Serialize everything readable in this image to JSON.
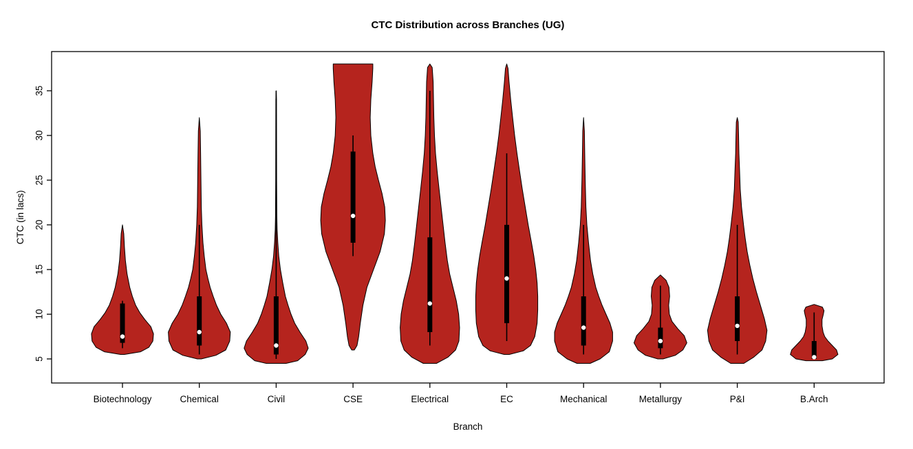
{
  "chart_data": {
    "type": "violin",
    "title": "CTC Distribution across Branches (UG)",
    "xlabel": "Branch",
    "ylabel": "CTC (in lacs)",
    "categories": [
      "Biotechnology",
      "Chemical",
      "Civil",
      "CSE",
      "Electrical",
      "EC",
      "Mechanical",
      "Metallurgy",
      "P&I",
      "B.Arch"
    ],
    "y_ticks": [
      5,
      10,
      15,
      20,
      25,
      30,
      35
    ],
    "ylim": [
      2.5,
      39.5
    ],
    "grid": false,
    "legend": "none",
    "styles": {
      "violin_fill": "#B5241E",
      "violin_stroke": "#000000",
      "box_color": "#000000",
      "median_dot": "#FFFFFF",
      "axis_color": "#000000",
      "background": "#FFFFFF"
    },
    "series": [
      {
        "name": "Biotechnology",
        "range": [
          5.5,
          20
        ],
        "q1": 6.8,
        "q3": 11.2,
        "median": 7.5,
        "whiskers": [
          6.2,
          11.5
        ],
        "density": [
          [
            5.5,
            0.06
          ],
          [
            5.8,
            0.55
          ],
          [
            6.3,
            0.8
          ],
          [
            7.0,
            0.92
          ],
          [
            7.8,
            0.94
          ],
          [
            8.6,
            0.86
          ],
          [
            9.4,
            0.68
          ],
          [
            10.2,
            0.52
          ],
          [
            11.0,
            0.4
          ],
          [
            12.0,
            0.3
          ],
          [
            13.0,
            0.22
          ],
          [
            14.5,
            0.14
          ],
          [
            16.0,
            0.09
          ],
          [
            17.5,
            0.06
          ],
          [
            19.0,
            0.04
          ],
          [
            20.0,
            0.0
          ]
        ]
      },
      {
        "name": "Chemical",
        "range": [
          5,
          32
        ],
        "q1": 6.5,
        "q3": 12.0,
        "median": 8.0,
        "whiskers": [
          5.5,
          20
        ],
        "density": [
          [
            5.0,
            0.06
          ],
          [
            5.4,
            0.5
          ],
          [
            6.0,
            0.8
          ],
          [
            7.0,
            0.92
          ],
          [
            8.0,
            0.94
          ],
          [
            9.0,
            0.82
          ],
          [
            10.0,
            0.65
          ],
          [
            11.0,
            0.52
          ],
          [
            12.0,
            0.42
          ],
          [
            13.0,
            0.33
          ],
          [
            14.0,
            0.26
          ],
          [
            15.0,
            0.2
          ],
          [
            16.5,
            0.15
          ],
          [
            18.0,
            0.11
          ],
          [
            20.0,
            0.08
          ],
          [
            22.0,
            0.06
          ],
          [
            25.0,
            0.05
          ],
          [
            28.0,
            0.04
          ],
          [
            30.5,
            0.03
          ],
          [
            32.0,
            0.0
          ]
        ]
      },
      {
        "name": "Civil",
        "range": [
          4.5,
          35
        ],
        "q1": 5.5,
        "q3": 12.0,
        "median": 6.5,
        "whiskers": [
          5.0,
          35.0
        ],
        "density": [
          [
            4.5,
            0.3
          ],
          [
            4.8,
            0.65
          ],
          [
            5.5,
            0.88
          ],
          [
            6.2,
            0.97
          ],
          [
            7.0,
            0.9
          ],
          [
            8.0,
            0.72
          ],
          [
            9.0,
            0.56
          ],
          [
            10.0,
            0.45
          ],
          [
            11.0,
            0.36
          ],
          [
            12.0,
            0.28
          ],
          [
            13.5,
            0.2
          ],
          [
            15.0,
            0.13
          ],
          [
            16.5,
            0.08
          ],
          [
            18.0,
            0.05
          ],
          [
            19.5,
            0.03
          ],
          [
            21.0,
            0.02
          ],
          [
            25.0,
            0.015
          ],
          [
            30.0,
            0.012
          ],
          [
            34.0,
            0.01
          ],
          [
            35.0,
            0.0
          ]
        ]
      },
      {
        "name": "CSE",
        "range": [
          6,
          38
        ],
        "q1": 18.0,
        "q3": 28.2,
        "median": 21.0,
        "whiskers": [
          16.5,
          30.0
        ],
        "density": [
          [
            6.0,
            0.04
          ],
          [
            6.5,
            0.12
          ],
          [
            7.5,
            0.17
          ],
          [
            9.0,
            0.22
          ],
          [
            11.0,
            0.3
          ],
          [
            13.0,
            0.42
          ],
          [
            15.0,
            0.62
          ],
          [
            17.0,
            0.82
          ],
          [
            19.0,
            0.95
          ],
          [
            20.5,
            0.98
          ],
          [
            22.0,
            0.96
          ],
          [
            23.5,
            0.88
          ],
          [
            25.0,
            0.77
          ],
          [
            26.5,
            0.67
          ],
          [
            28.0,
            0.6
          ],
          [
            30.0,
            0.54
          ],
          [
            32.0,
            0.52
          ],
          [
            34.0,
            0.54
          ],
          [
            36.0,
            0.58
          ],
          [
            37.5,
            0.6
          ],
          [
            38.0,
            0.6
          ]
        ]
      },
      {
        "name": "Electrical",
        "range": [
          4.5,
          38
        ],
        "q1": 8.0,
        "q3": 18.6,
        "median": 11.2,
        "whiskers": [
          6.5,
          35.0
        ],
        "density": [
          [
            4.5,
            0.2
          ],
          [
            5.2,
            0.55
          ],
          [
            6.0,
            0.78
          ],
          [
            7.0,
            0.88
          ],
          [
            8.5,
            0.9
          ],
          [
            10.0,
            0.87
          ],
          [
            11.5,
            0.8
          ],
          [
            13.0,
            0.7
          ],
          [
            14.5,
            0.6
          ],
          [
            16.0,
            0.53
          ],
          [
            18.0,
            0.46
          ],
          [
            20.0,
            0.4
          ],
          [
            22.0,
            0.34
          ],
          [
            24.0,
            0.28
          ],
          [
            26.0,
            0.22
          ],
          [
            28.0,
            0.17
          ],
          [
            30.0,
            0.14
          ],
          [
            32.0,
            0.12
          ],
          [
            34.0,
            0.11
          ],
          [
            36.0,
            0.1
          ],
          [
            37.6,
            0.07
          ],
          [
            38.0,
            0.0
          ]
        ]
      },
      {
        "name": "EC",
        "range": [
          5.5,
          38
        ],
        "q1": 9.0,
        "q3": 20.0,
        "median": 14.0,
        "whiskers": [
          7.0,
          28.0
        ],
        "density": [
          [
            5.5,
            0.08
          ],
          [
            5.9,
            0.5
          ],
          [
            6.5,
            0.72
          ],
          [
            7.5,
            0.85
          ],
          [
            9.0,
            0.92
          ],
          [
            10.5,
            0.94
          ],
          [
            12.0,
            0.94
          ],
          [
            13.5,
            0.92
          ],
          [
            15.0,
            0.88
          ],
          [
            16.5,
            0.82
          ],
          [
            18.0,
            0.75
          ],
          [
            20.0,
            0.65
          ],
          [
            22.0,
            0.56
          ],
          [
            24.0,
            0.47
          ],
          [
            26.0,
            0.39
          ],
          [
            28.0,
            0.31
          ],
          [
            30.0,
            0.24
          ],
          [
            32.0,
            0.18
          ],
          [
            34.0,
            0.12
          ],
          [
            36.0,
            0.07
          ],
          [
            37.5,
            0.04
          ],
          [
            38.0,
            0.0
          ]
        ]
      },
      {
        "name": "Mechanical",
        "range": [
          4.5,
          32
        ],
        "q1": 6.5,
        "q3": 12.0,
        "median": 8.5,
        "whiskers": [
          5.5,
          20.0
        ],
        "density": [
          [
            4.5,
            0.2
          ],
          [
            5.0,
            0.5
          ],
          [
            5.8,
            0.78
          ],
          [
            7.0,
            0.88
          ],
          [
            8.0,
            0.88
          ],
          [
            9.0,
            0.8
          ],
          [
            10.0,
            0.68
          ],
          [
            11.0,
            0.56
          ],
          [
            12.0,
            0.46
          ],
          [
            13.0,
            0.37
          ],
          [
            14.5,
            0.28
          ],
          [
            16.0,
            0.21
          ],
          [
            18.0,
            0.15
          ],
          [
            20.0,
            0.1
          ],
          [
            22.0,
            0.07
          ],
          [
            25.0,
            0.05
          ],
          [
            28.0,
            0.035
          ],
          [
            30.5,
            0.025
          ],
          [
            32.0,
            0.0
          ]
        ]
      },
      {
        "name": "Metallurgy",
        "range": [
          5,
          14.4
        ],
        "q1": 6.2,
        "q3": 8.5,
        "median": 7.0,
        "whiskers": [
          5.5,
          13.2
        ],
        "density": [
          [
            5.0,
            0.08
          ],
          [
            5.4,
            0.45
          ],
          [
            6.0,
            0.68
          ],
          [
            6.8,
            0.8
          ],
          [
            7.6,
            0.72
          ],
          [
            8.4,
            0.52
          ],
          [
            9.2,
            0.35
          ],
          [
            10.0,
            0.27
          ],
          [
            11.0,
            0.25
          ],
          [
            12.0,
            0.28
          ],
          [
            13.0,
            0.26
          ],
          [
            13.8,
            0.17
          ],
          [
            14.4,
            0.0
          ]
        ]
      },
      {
        "name": "P&I",
        "range": [
          4.5,
          32
        ],
        "q1": 7.0,
        "q3": 12.0,
        "median": 8.7,
        "whiskers": [
          5.5,
          20.0
        ],
        "density": [
          [
            4.5,
            0.2
          ],
          [
            5.2,
            0.5
          ],
          [
            6.0,
            0.75
          ],
          [
            7.0,
            0.86
          ],
          [
            8.2,
            0.9
          ],
          [
            9.5,
            0.82
          ],
          [
            11.0,
            0.7
          ],
          [
            12.5,
            0.58
          ],
          [
            14.0,
            0.47
          ],
          [
            15.5,
            0.38
          ],
          [
            17.0,
            0.3
          ],
          [
            18.5,
            0.24
          ],
          [
            20.0,
            0.19
          ],
          [
            22.0,
            0.13
          ],
          [
            24.0,
            0.09
          ],
          [
            26.0,
            0.07
          ],
          [
            28.0,
            0.05
          ],
          [
            30.0,
            0.04
          ],
          [
            31.5,
            0.03
          ],
          [
            32.0,
            0.0
          ]
        ]
      },
      {
        "name": "B.Arch",
        "range": [
          4.8,
          11.1
        ],
        "q1": 5.0,
        "q3": 7.0,
        "median": 5.2,
        "whiskers": [
          5.0,
          10.2
        ],
        "density": [
          [
            4.8,
            0.25
          ],
          [
            5.0,
            0.55
          ],
          [
            5.5,
            0.72
          ],
          [
            6.0,
            0.68
          ],
          [
            6.5,
            0.55
          ],
          [
            7.0,
            0.42
          ],
          [
            7.5,
            0.32
          ],
          [
            8.0,
            0.27
          ],
          [
            8.7,
            0.24
          ],
          [
            9.4,
            0.24
          ],
          [
            10.0,
            0.28
          ],
          [
            10.4,
            0.3
          ],
          [
            10.8,
            0.25
          ],
          [
            11.1,
            0.0
          ]
        ]
      }
    ]
  }
}
